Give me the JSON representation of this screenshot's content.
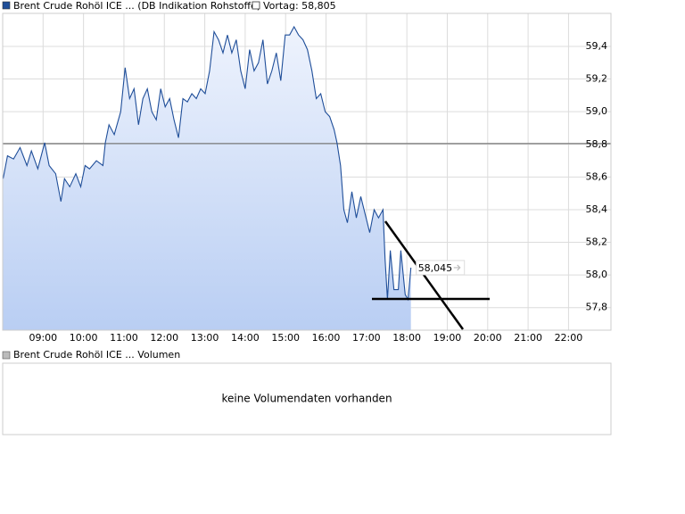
{
  "chart_data": {
    "type": "line",
    "legend_main": "Brent Crude Rohöl ICE ... (DB Indikation Rohstoffe)",
    "legend_reference": "Vortag: 58,805",
    "reference_value": 58.805,
    "last_label": "58,045",
    "volume_legend": "Brent Crude Rohöl ICE ... Volumen",
    "volume_message": "keine Volumendaten vorhanden",
    "grid": true,
    "xlim": [
      8,
      23.05
    ],
    "ylim": [
      57.662,
      59.602
    ],
    "xticks": [
      {
        "value": 9,
        "label": "09:00"
      },
      {
        "value": 10,
        "label": "10:00"
      },
      {
        "value": 11,
        "label": "11:00"
      },
      {
        "value": 12,
        "label": "12:00"
      },
      {
        "value": 13,
        "label": "13:00"
      },
      {
        "value": 14,
        "label": "14:00"
      },
      {
        "value": 15,
        "label": "15:00"
      },
      {
        "value": 16,
        "label": "16:00"
      },
      {
        "value": 17,
        "label": "17:00"
      },
      {
        "value": 18,
        "label": "18:00"
      },
      {
        "value": 19,
        "label": "19:00"
      },
      {
        "value": 20,
        "label": "20:00"
      },
      {
        "value": 21,
        "label": "21:00"
      },
      {
        "value": 22,
        "label": "22:00"
      }
    ],
    "yticks": [
      {
        "value": 57.8,
        "label": "57,8"
      },
      {
        "value": 58.0,
        "label": "58,0"
      },
      {
        "value": 58.2,
        "label": "58,2"
      },
      {
        "value": 58.4,
        "label": "58,4"
      },
      {
        "value": 58.6,
        "label": "58,6"
      },
      {
        "value": 58.8,
        "label": "58,8"
      },
      {
        "value": 59.0,
        "label": "59,0"
      },
      {
        "value": 59.2,
        "label": "59,2"
      },
      {
        "value": 59.4,
        "label": "59,4"
      }
    ],
    "x": [
      8.01,
      8.12,
      8.27,
      8.43,
      8.6,
      8.71,
      8.87,
      9.04,
      9.15,
      9.31,
      9.44,
      9.53,
      9.66,
      9.81,
      9.93,
      10.04,
      10.15,
      10.32,
      10.48,
      10.54,
      10.63,
      10.76,
      10.92,
      11.03,
      11.14,
      11.25,
      11.36,
      11.47,
      11.58,
      11.69,
      11.8,
      11.91,
      12.02,
      12.13,
      12.24,
      12.35,
      12.46,
      12.57,
      12.68,
      12.79,
      12.9,
      13.01,
      13.12,
      13.23,
      13.34,
      13.45,
      13.56,
      13.67,
      13.78,
      13.89,
      14.0,
      14.11,
      14.22,
      14.33,
      14.44,
      14.55,
      14.66,
      14.77,
      14.88,
      14.99,
      15.1,
      15.21,
      15.32,
      15.43,
      15.54,
      15.65,
      15.76,
      15.87,
      15.98,
      16.09,
      16.2,
      16.27,
      16.36,
      16.44,
      16.53,
      16.64,
      16.75,
      16.86,
      16.97,
      17.08,
      17.19,
      17.3,
      17.41,
      17.46,
      17.52,
      17.59,
      17.68,
      17.79,
      17.85,
      17.96,
      18.03,
      18.1
    ],
    "series": [
      {
        "name": "Brent Crude Rohöl ICE",
        "color": "#1f4e99",
        "values": [
          58.59,
          58.73,
          58.71,
          58.78,
          58.67,
          58.76,
          58.65,
          58.81,
          58.67,
          58.62,
          58.45,
          58.59,
          58.54,
          58.62,
          58.54,
          58.67,
          58.65,
          58.7,
          58.67,
          58.81,
          58.92,
          58.86,
          59.0,
          59.27,
          59.08,
          59.14,
          58.92,
          59.08,
          59.14,
          59.0,
          58.95,
          59.14,
          59.03,
          59.08,
          58.95,
          58.84,
          59.08,
          59.06,
          59.11,
          59.08,
          59.14,
          59.11,
          59.25,
          59.49,
          59.44,
          59.36,
          59.47,
          59.36,
          59.44,
          59.25,
          59.14,
          59.38,
          59.25,
          59.3,
          59.44,
          59.17,
          59.25,
          59.36,
          59.19,
          59.47,
          59.47,
          59.52,
          59.47,
          59.44,
          59.38,
          59.25,
          59.08,
          59.11,
          59.0,
          58.97,
          58.89,
          58.81,
          58.67,
          58.4,
          58.32,
          58.51,
          58.35,
          58.48,
          58.37,
          58.26,
          58.4,
          58.35,
          58.4,
          58.1,
          57.85,
          58.15,
          57.91,
          57.91,
          58.15,
          57.88,
          57.85,
          58.045
        ]
      }
    ]
  }
}
